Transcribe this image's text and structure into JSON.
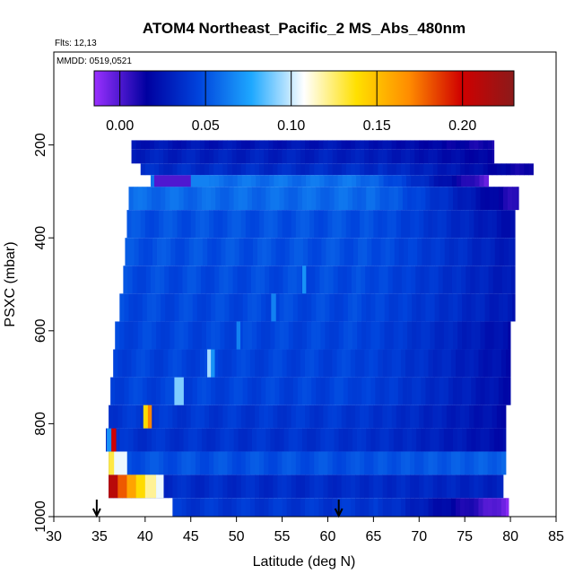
{
  "chart_data": {
    "type": "heatmap",
    "title": "ATOM4 Northeast_Pacific_2 MS_Abs_480nm",
    "flights_label": "Flts: 12,13",
    "dates_label": "MMDD: 0519,0521",
    "xlabel": "Latitude (deg N)",
    "ylabel": "PSXC (mbar)",
    "xlim": [
      30,
      85
    ],
    "ylim": [
      1000,
      0
    ],
    "x_ticks": [
      "30",
      "35",
      "40",
      "45",
      "50",
      "55",
      "60",
      "65",
      "70",
      "75",
      "80",
      "85"
    ],
    "y_ticks": [
      "200",
      "400",
      "600",
      "800",
      "1000"
    ],
    "colorbar": {
      "range": [
        -0.015,
        0.23
      ],
      "ticks": [
        "0.00",
        "0.05",
        "0.10",
        "0.15",
        "0.20"
      ],
      "colors": [
        "#9B30FF",
        "#0000A0",
        "#0044DD",
        "#1EA8FF",
        "#FFFFFF",
        "#FFE000",
        "#FF8C00",
        "#D00000",
        "#8B1A1A"
      ]
    },
    "arrows_at_latitude": [
      34.7,
      61.2
    ],
    "pressure_bins": [
      {
        "p_top": 190,
        "p_bot": 210,
        "lat_min": 38.5,
        "lat_max": 78.2,
        "base": 0.025,
        "end": 0.01
      },
      {
        "p_top": 210,
        "p_bot": 240,
        "lat_min": 38.5,
        "lat_max": 78.2,
        "base": 0.03,
        "end": 0.015
      },
      {
        "p_top": 240,
        "p_bot": 265,
        "lat_min": 39.5,
        "lat_max": 82.5,
        "base": 0.035,
        "end": 0.01
      },
      {
        "p_top": 265,
        "p_bot": 290,
        "lat_min": 40.6,
        "lat_max": 77.6,
        "base": 0.06,
        "end": -0.005
      },
      {
        "p_top": 290,
        "p_bot": 340,
        "lat_min": 38.2,
        "lat_max": 80.9,
        "base": 0.058,
        "end": 0.005
      },
      {
        "p_top": 340,
        "p_bot": 400,
        "lat_min": 38.0,
        "lat_max": 80.5,
        "base": 0.05,
        "end": 0.02
      },
      {
        "p_top": 400,
        "p_bot": 460,
        "lat_min": 37.8,
        "lat_max": 80.5,
        "base": 0.05,
        "end": 0.025
      },
      {
        "p_top": 460,
        "p_bot": 520,
        "lat_min": 37.6,
        "lat_max": 80.5,
        "base": 0.048,
        "end": 0.025
      },
      {
        "p_top": 520,
        "p_bot": 580,
        "lat_min": 37.2,
        "lat_max": 80.5,
        "base": 0.047,
        "end": 0.025
      },
      {
        "p_top": 580,
        "p_bot": 640,
        "lat_min": 36.7,
        "lat_max": 80.0,
        "base": 0.046,
        "end": 0.02
      },
      {
        "p_top": 640,
        "p_bot": 700,
        "lat_min": 36.5,
        "lat_max": 80.0,
        "base": 0.045,
        "end": 0.02
      },
      {
        "p_top": 700,
        "p_bot": 760,
        "lat_min": 36.2,
        "lat_max": 80.0,
        "base": 0.045,
        "end": 0.02
      },
      {
        "p_top": 760,
        "p_bot": 810,
        "lat_min": 36.0,
        "lat_max": 79.5,
        "base": 0.04,
        "end": 0.02
      },
      {
        "p_top": 810,
        "p_bot": 860,
        "lat_min": 35.7,
        "lat_max": 79.5,
        "base": 0.038,
        "end": 0.02
      },
      {
        "p_top": 860,
        "p_bot": 910,
        "lat_min": 36.0,
        "lat_max": 79.5,
        "base": 0.05,
        "end": 0.055
      },
      {
        "p_top": 910,
        "p_bot": 960,
        "lat_min": 36.0,
        "lat_max": 79.2,
        "base": 0.035,
        "end": 0.03
      },
      {
        "p_top": 960,
        "p_bot": 1000,
        "lat_min": 43.0,
        "lat_max": 79.8,
        "base": 0.04,
        "end": -0.01
      }
    ],
    "hotspots": [
      {
        "p_top": 910,
        "p_bot": 960,
        "lat_min": 36.0,
        "lat_max": 37.0,
        "value": 0.21
      },
      {
        "p_top": 910,
        "p_bot": 960,
        "lat_min": 37.0,
        "lat_max": 38.0,
        "value": 0.18
      },
      {
        "p_top": 910,
        "p_bot": 960,
        "lat_min": 38.0,
        "lat_max": 39.0,
        "value": 0.16
      },
      {
        "p_top": 910,
        "p_bot": 960,
        "lat_min": 39.0,
        "lat_max": 40.0,
        "value": 0.14
      },
      {
        "p_top": 910,
        "p_bot": 960,
        "lat_min": 40.0,
        "lat_max": 41.2,
        "value": 0.12
      },
      {
        "p_top": 910,
        "p_bot": 960,
        "lat_min": 41.2,
        "lat_max": 42.0,
        "value": 0.105
      },
      {
        "p_top": 860,
        "p_bot": 910,
        "lat_min": 36.0,
        "lat_max": 36.6,
        "value": 0.13
      },
      {
        "p_top": 860,
        "p_bot": 910,
        "lat_min": 36.6,
        "lat_max": 38.0,
        "value": 0.105
      },
      {
        "p_top": 810,
        "p_bot": 860,
        "lat_min": 35.8,
        "lat_max": 36.3,
        "value": 0.07
      },
      {
        "p_top": 810,
        "p_bot": 860,
        "lat_min": 36.3,
        "lat_max": 36.8,
        "value": 0.2
      },
      {
        "p_top": 760,
        "p_bot": 810,
        "lat_min": 39.8,
        "lat_max": 40.3,
        "value": 0.14
      },
      {
        "p_top": 760,
        "p_bot": 810,
        "lat_min": 40.3,
        "lat_max": 40.7,
        "value": 0.17
      },
      {
        "p_top": 700,
        "p_bot": 760,
        "lat_min": 43.2,
        "lat_max": 44.2,
        "value": 0.09
      },
      {
        "p_top": 640,
        "p_bot": 700,
        "lat_min": 46.8,
        "lat_max": 47.2,
        "value": 0.095
      },
      {
        "p_top": 640,
        "p_bot": 700,
        "lat_min": 47.2,
        "lat_max": 47.6,
        "value": 0.07
      },
      {
        "p_top": 580,
        "p_bot": 640,
        "lat_min": 50.0,
        "lat_max": 50.4,
        "value": 0.065
      },
      {
        "p_top": 520,
        "p_bot": 580,
        "lat_min": 53.8,
        "lat_max": 54.3,
        "value": 0.065
      },
      {
        "p_top": 460,
        "p_bot": 520,
        "lat_min": 57.2,
        "lat_max": 57.6,
        "value": 0.07
      },
      {
        "p_top": 265,
        "p_bot": 290,
        "lat_min": 41.0,
        "lat_max": 45.0,
        "value": 0.0
      },
      {
        "p_top": 265,
        "p_bot": 290,
        "lat_min": 45.0,
        "lat_max": 47.0,
        "value": 0.065
      }
    ]
  }
}
